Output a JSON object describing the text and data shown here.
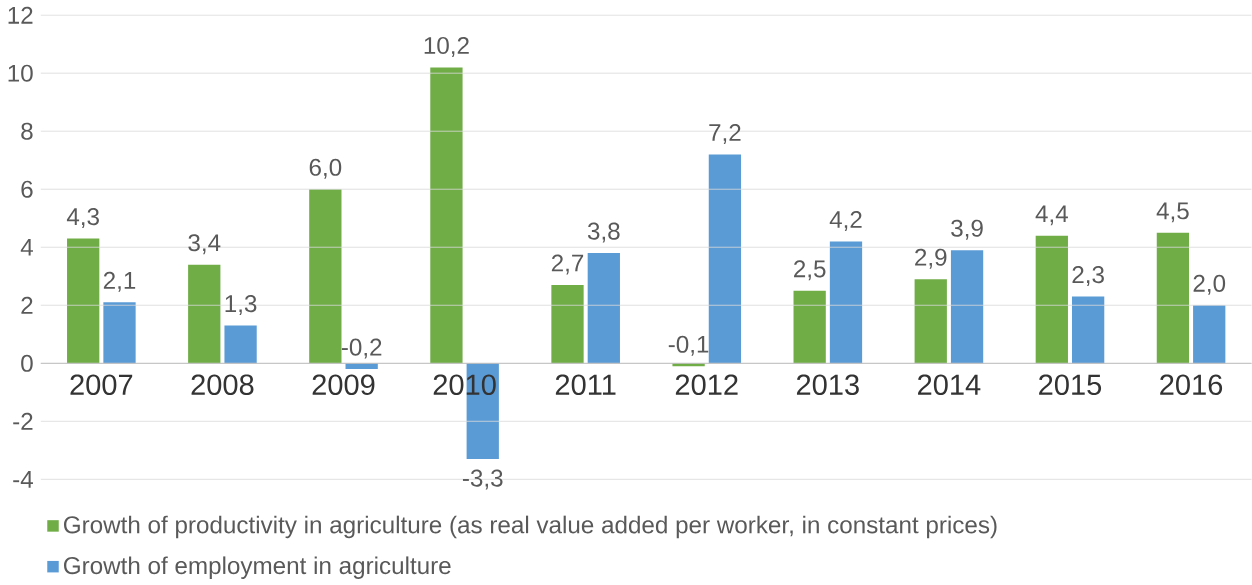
{
  "chart_data": {
    "type": "bar",
    "categories": [
      "2007",
      "2008",
      "2009",
      "2010",
      "2011",
      "2012",
      "2013",
      "2014",
      "2015",
      "2016"
    ],
    "series": [
      {
        "name": "Growth of productivity in agriculture (as real value added per worker, in constant prices)",
        "color": "#70ad47",
        "values": [
          4.3,
          3.4,
          6.0,
          10.2,
          2.7,
          -0.1,
          2.5,
          2.9,
          4.4,
          4.5
        ],
        "value_labels": [
          "4,3",
          "3,4",
          "6,0",
          "10,2",
          "2,7",
          "-0,1",
          "2,5",
          "2,9",
          "4,4",
          "4,5"
        ]
      },
      {
        "name": "Growth of employment in agriculture",
        "color": "#5b9bd5",
        "values": [
          2.1,
          1.3,
          -0.2,
          -3.3,
          3.8,
          7.2,
          4.2,
          3.9,
          2.3,
          2.0
        ],
        "value_labels": [
          "2,1",
          "1,3",
          "-0,2",
          "-3,3",
          "3,8",
          "7,2",
          "4,2",
          "3,9",
          "2,3",
          "2,0"
        ]
      }
    ],
    "ylim": [
      -4,
      12
    ],
    "yticks": [
      -4,
      -2,
      0,
      2,
      4,
      6,
      8,
      10,
      12
    ],
    "grid": "y",
    "legend": "bottom"
  }
}
